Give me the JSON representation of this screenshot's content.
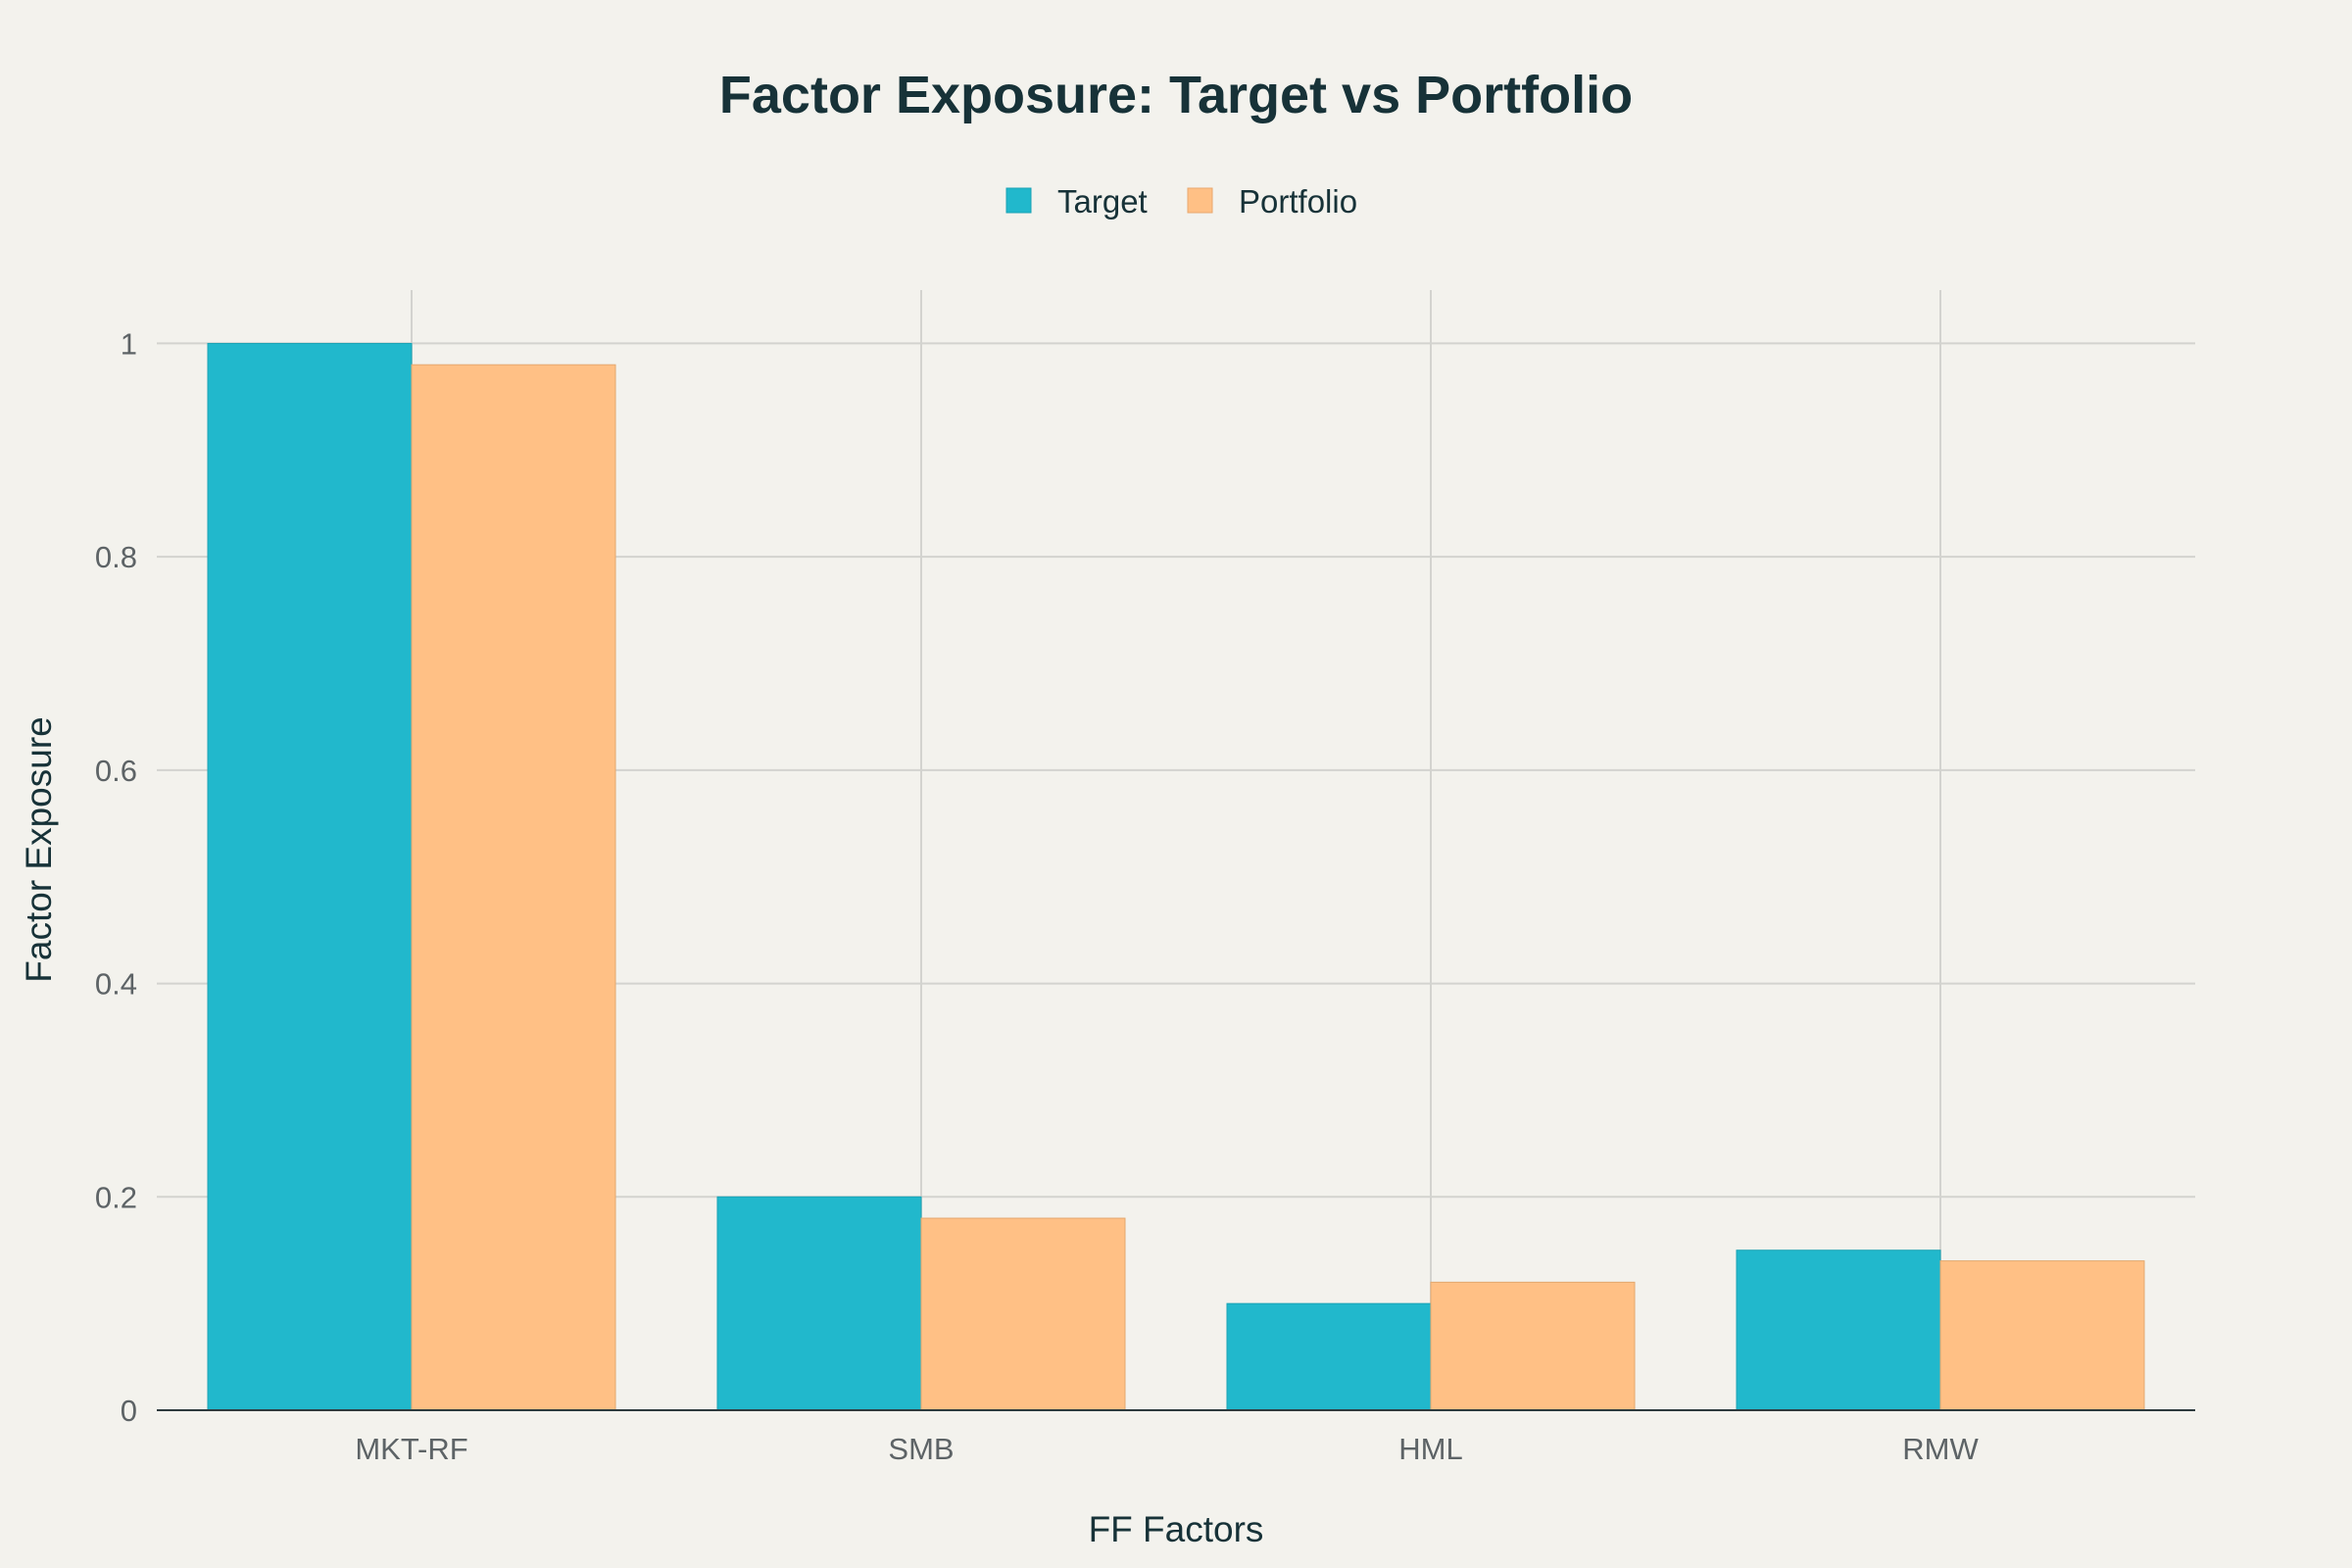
{
  "chart_data": {
    "type": "bar",
    "title": "Factor Exposure: Target vs Portfolio",
    "xlabel": "FF Factors",
    "ylabel": "Factor Exposure",
    "categories": [
      "MKT-RF",
      "SMB",
      "HML",
      "RMW"
    ],
    "series": [
      {
        "name": "Target",
        "values": [
          1.0,
          0.2,
          0.1,
          0.15
        ],
        "color": "#21b8cc"
      },
      {
        "name": "Portfolio",
        "values": [
          0.98,
          0.18,
          0.12,
          0.14
        ],
        "color": "#ffc085"
      }
    ],
    "ylim": [
      0,
      1.05
    ],
    "yticks": [
      0,
      0.2,
      0.4,
      0.6,
      0.8,
      1
    ],
    "ytick_labels": [
      "0",
      "0.2",
      "0.4",
      "0.6",
      "0.8",
      "1"
    ],
    "legend_position": "top-center",
    "grid": true
  }
}
